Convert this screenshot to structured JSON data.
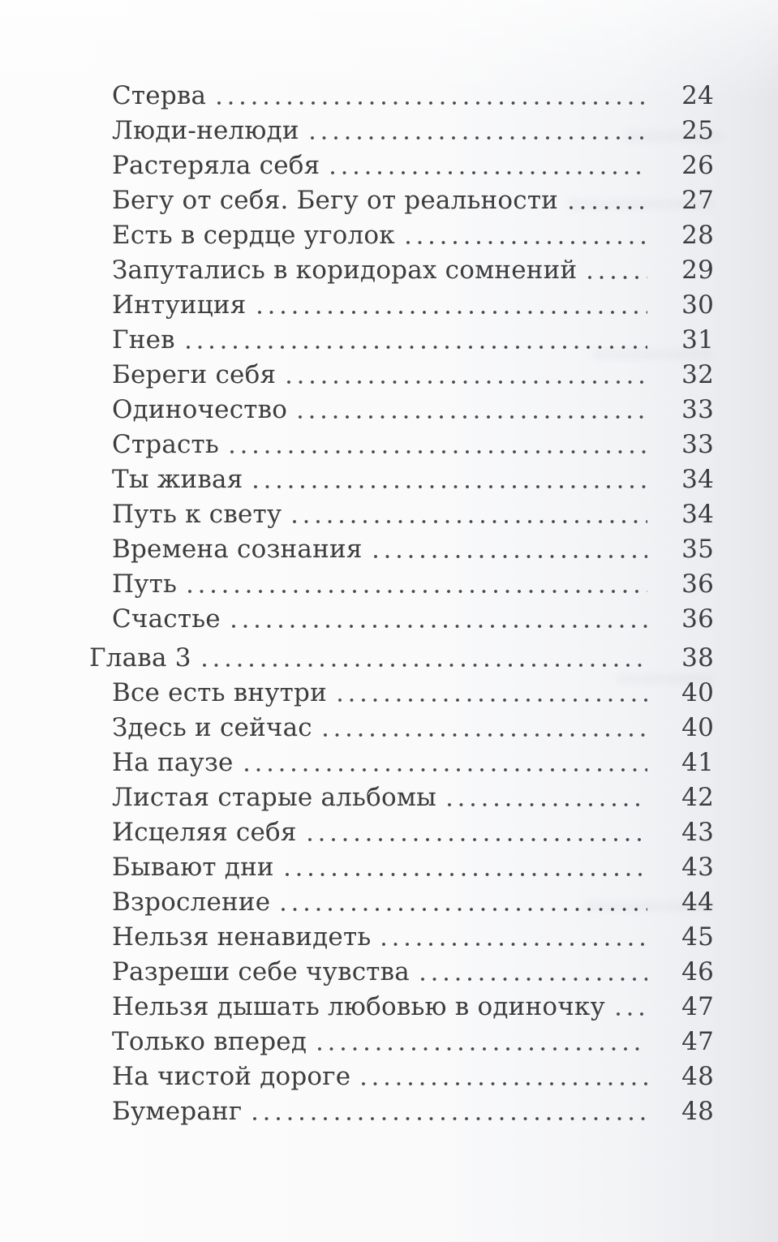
{
  "document": {
    "kind": "book-table-of-contents-scan",
    "language": "ru",
    "entries": [
      {
        "title": "Стерва",
        "page": "24",
        "level": "item"
      },
      {
        "title": "Люди-нелюди",
        "page": "25",
        "level": "item"
      },
      {
        "title": "Растеряла себя",
        "page": "26",
        "level": "item"
      },
      {
        "title": "Бегу от себя. Бегу от реальности",
        "page": "27",
        "level": "item"
      },
      {
        "title": "Есть в сердце уголок",
        "page": "28",
        "level": "item"
      },
      {
        "title": "Запутались в коридорах сомнений",
        "page": "29",
        "level": "item"
      },
      {
        "title": "Интуиция",
        "page": "30",
        "level": "item"
      },
      {
        "title": "Гнев",
        "page": "31",
        "level": "item"
      },
      {
        "title": "Береги себя",
        "page": "32",
        "level": "item"
      },
      {
        "title": "Одиночество",
        "page": "33",
        "level": "item"
      },
      {
        "title": "Страсть",
        "page": "33",
        "level": "item"
      },
      {
        "title": "Ты живая",
        "page": "34",
        "level": "item"
      },
      {
        "title": "Путь к свету",
        "page": "34",
        "level": "item"
      },
      {
        "title": "Времена сознания",
        "page": "35",
        "level": "item"
      },
      {
        "title": "Путь",
        "page": "36",
        "level": "item"
      },
      {
        "title": "Счастье",
        "page": "36",
        "level": "item"
      },
      {
        "title": "Глава 3",
        "page": "38",
        "level": "chapter"
      },
      {
        "title": "Все есть внутри",
        "page": "40",
        "level": "item"
      },
      {
        "title": "Здесь и сейчас",
        "page": "40",
        "level": "item"
      },
      {
        "title": "На паузе",
        "page": "41",
        "level": "item"
      },
      {
        "title": "Листая старые альбомы",
        "page": "42",
        "level": "item"
      },
      {
        "title": "Исцеляя себя",
        "page": "43",
        "level": "item"
      },
      {
        "title": "Бывают дни",
        "page": "43",
        "level": "item"
      },
      {
        "title": "Взросление",
        "page": "44",
        "level": "item"
      },
      {
        "title": "Нельзя ненавидеть",
        "page": "45",
        "level": "item"
      },
      {
        "title": "Разреши себе чувства",
        "page": "46",
        "level": "item"
      },
      {
        "title": "Нельзя дышать любовью в одиночку",
        "page": "47",
        "level": "item"
      },
      {
        "title": "Только вперед",
        "page": "47",
        "level": "item"
      },
      {
        "title": "На чистой дороге",
        "page": "48",
        "level": "item"
      },
      {
        "title": "Бумеранг",
        "page": "48",
        "level": "item"
      }
    ]
  },
  "colors": {
    "text": "#3d3d3f",
    "dot_leader": "#4b4b4d",
    "paper": "#fafafb",
    "paper_edge_shade": "#e4e5e9"
  }
}
